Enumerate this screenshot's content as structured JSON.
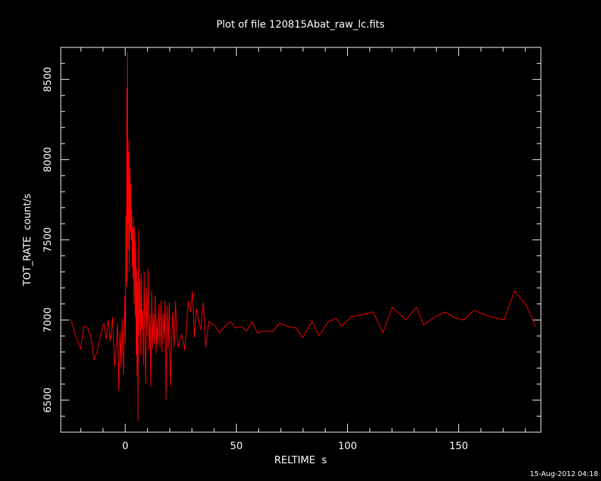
{
  "chart_data": {
    "type": "line",
    "title": "Plot of file 120815Abat_raw_lc.fits",
    "xlabel": "RELTIME  s",
    "ylabel": "TOT_RATE  count/s",
    "xlim": [
      -29,
      187
    ],
    "ylim": [
      6300,
      8700
    ],
    "xticks": [
      0,
      50,
      100,
      150
    ],
    "yticks": [
      6500,
      7000,
      7500,
      8000,
      8500
    ],
    "grid": false,
    "series": [
      {
        "color": "#ff0000",
        "points": [
          [
            -24.4,
            7000
          ],
          [
            -22.3,
            6900
          ],
          [
            -20.1,
            6820
          ],
          [
            -18.6,
            6960
          ],
          [
            -17.0,
            6950
          ],
          [
            -15.4,
            6890
          ],
          [
            -14.1,
            6750
          ],
          [
            -12.5,
            6810
          ],
          [
            -10.9,
            6920
          ],
          [
            -9.6,
            6980
          ],
          [
            -8.6,
            6880
          ],
          [
            -7.7,
            7000
          ],
          [
            -6.7,
            6870
          ],
          [
            -5.7,
            7020
          ],
          [
            -4.8,
            6710
          ],
          [
            -4.1,
            6830
          ],
          [
            -3.5,
            6980
          ],
          [
            -2.9,
            6560
          ],
          [
            -2.3,
            6930
          ],
          [
            -1.9,
            6700
          ],
          [
            -1.4,
            7010
          ],
          [
            -0.8,
            6660
          ],
          [
            -0.2,
            7150
          ],
          [
            0.1,
            6850
          ],
          [
            0.3,
            7650
          ],
          [
            0.5,
            7210
          ],
          [
            0.7,
            8450
          ],
          [
            0.9,
            7240
          ],
          [
            1.0,
            8670
          ],
          [
            1.2,
            7600
          ],
          [
            1.4,
            8050
          ],
          [
            1.5,
            7440
          ],
          [
            1.7,
            8120
          ],
          [
            1.9,
            7300
          ],
          [
            2.1,
            7950
          ],
          [
            2.3,
            7550
          ],
          [
            2.5,
            7850
          ],
          [
            2.7,
            7500
          ],
          [
            2.9,
            7690
          ],
          [
            3.1,
            7330
          ],
          [
            3.3,
            7580
          ],
          [
            3.5,
            7260
          ],
          [
            3.7,
            7640
          ],
          [
            3.9,
            7100
          ],
          [
            4.1,
            7580
          ],
          [
            4.3,
            7420
          ],
          [
            4.5,
            7020
          ],
          [
            4.7,
            7490
          ],
          [
            4.9,
            6780
          ],
          [
            5.1,
            7320
          ],
          [
            5.3,
            6650
          ],
          [
            5.5,
            7240
          ],
          [
            5.7,
            6370
          ],
          [
            5.9,
            7110
          ],
          [
            6.1,
            7560
          ],
          [
            6.3,
            6900
          ],
          [
            6.6,
            7260
          ],
          [
            6.9,
            6780
          ],
          [
            7.2,
            7290
          ],
          [
            7.5,
            6940
          ],
          [
            7.8,
            7060
          ],
          [
            8.1,
            6720
          ],
          [
            8.5,
            7300
          ],
          [
            8.8,
            6950
          ],
          [
            9.2,
            6600
          ],
          [
            9.5,
            7200
          ],
          [
            9.9,
            6900
          ],
          [
            10.3,
            7320
          ],
          [
            10.7,
            6810
          ],
          [
            11.1,
            7040
          ],
          [
            11.5,
            6580
          ],
          [
            11.9,
            7180
          ],
          [
            12.3,
            6820
          ],
          [
            12.7,
            7040
          ],
          [
            13.1,
            6850
          ],
          [
            13.5,
            7150
          ],
          [
            13.9,
            6790
          ],
          [
            14.3,
            7010
          ],
          [
            14.7,
            6850
          ],
          [
            15.2,
            7100
          ],
          [
            15.6,
            6830
          ],
          [
            16.1,
            7120
          ],
          [
            16.5,
            6800
          ],
          [
            17.0,
            7040
          ],
          [
            17.4,
            6880
          ],
          [
            17.9,
            7120
          ],
          [
            18.3,
            6500
          ],
          [
            18.8,
            7090
          ],
          [
            19.3,
            6820
          ],
          [
            19.8,
            7110
          ],
          [
            20.3,
            6590
          ],
          [
            20.8,
            6850
          ],
          [
            21.4,
            7050
          ],
          [
            22.0,
            6830
          ],
          [
            22.6,
            7120
          ],
          [
            23.2,
            6920
          ],
          [
            23.9,
            6830
          ],
          [
            24.6,
            6880
          ],
          [
            25.3,
            6910
          ],
          [
            26.0,
            6870
          ],
          [
            26.8,
            6810
          ],
          [
            27.6,
            6960
          ],
          [
            28.4,
            7120
          ],
          [
            29.3,
            7050
          ],
          [
            30.2,
            7180
          ],
          [
            31.1,
            6890
          ],
          [
            32.0,
            7070
          ],
          [
            33.0,
            6990
          ],
          [
            34.0,
            6940
          ],
          [
            35.1,
            7110
          ],
          [
            36.2,
            6830
          ],
          [
            37.6,
            6990
          ],
          [
            40.0,
            6970
          ],
          [
            42.4,
            6920
          ],
          [
            44.9,
            6960
          ],
          [
            47.3,
            6990
          ],
          [
            49.7,
            6950
          ],
          [
            52.2,
            6960
          ],
          [
            54.6,
            6930
          ],
          [
            57.0,
            6990
          ],
          [
            59.4,
            6920
          ],
          [
            62.6,
            6930
          ],
          [
            66.5,
            6930
          ],
          [
            69.4,
            6980
          ],
          [
            72.9,
            6960
          ],
          [
            76.9,
            6950
          ],
          [
            79.8,
            6890
          ],
          [
            84.1,
            6990
          ],
          [
            87.1,
            6900
          ],
          [
            91.3,
            6990
          ],
          [
            94.8,
            7010
          ],
          [
            97.3,
            6960
          ],
          [
            101.6,
            7020
          ],
          [
            105.7,
            7030
          ],
          [
            111.5,
            7050
          ],
          [
            115.9,
            6920
          ],
          [
            120.1,
            7080
          ],
          [
            126.3,
            7000
          ],
          [
            131.0,
            7080
          ],
          [
            134.3,
            6970
          ],
          [
            139.6,
            7020
          ],
          [
            143.9,
            7050
          ],
          [
            148.8,
            7010
          ],
          [
            152.4,
            7000
          ],
          [
            156.8,
            7060
          ],
          [
            162.3,
            7030
          ],
          [
            167.5,
            7010
          ],
          [
            170.4,
            7000
          ],
          [
            175.1,
            7180
          ],
          [
            177.5,
            7140
          ],
          [
            180.2,
            7100
          ],
          [
            184.6,
            6960
          ]
        ]
      }
    ]
  },
  "footer": {
    "timestamp": "15-Aug-2012 04:18"
  }
}
